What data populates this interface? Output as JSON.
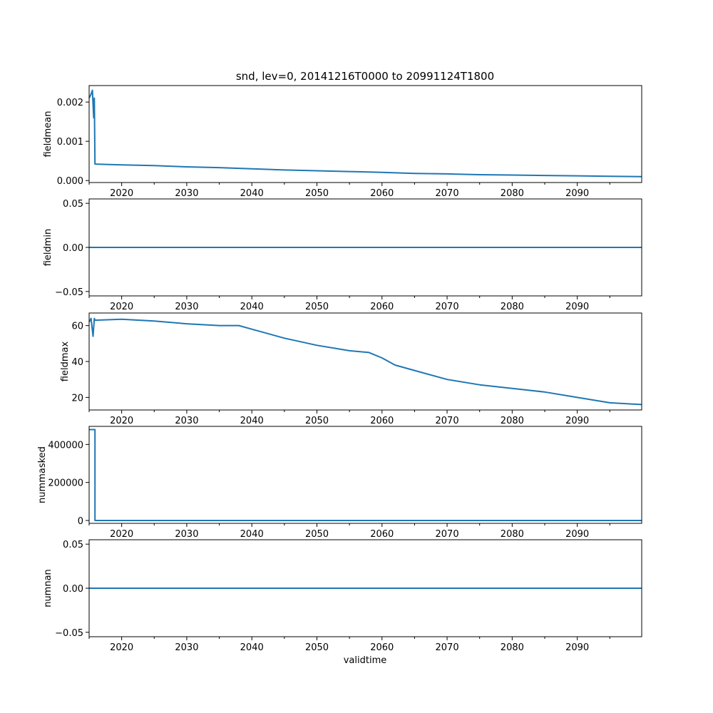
{
  "chart_data": {
    "type": "line",
    "title": "snd, lev=0, 20141216T0000 to 20991124T1800",
    "xlabel": "validtime",
    "xlim": [
      2015.0,
      2099.9
    ],
    "x_ticks": [
      "2020",
      "2030",
      "2040",
      "2050",
      "2060",
      "2070",
      "2080",
      "2090"
    ],
    "line_color": "#1f77b4",
    "grid": false,
    "panels": [
      {
        "ylabel": "fieldmean",
        "ylim": [
          -5e-05,
          0.00242
        ],
        "y_ticks": [
          "0.000",
          "0.001",
          "0.002"
        ],
        "series": [
          {
            "x": [
              2015.0,
              2015.3,
              2015.5,
              2015.7,
              2015.8,
              2015.9,
              2020,
              2025,
              2030,
              2035,
              2040,
              2045,
              2050,
              2055,
              2060,
              2065,
              2070,
              2075,
              2080,
              2085,
              2090,
              2095,
              2099.9
            ],
            "y": [
              0.0021,
              0.0022,
              0.0023,
              0.0016,
              0.0021,
              0.00042,
              0.0004,
              0.00038,
              0.00035,
              0.00033,
              0.0003,
              0.00027,
              0.00025,
              0.00023,
              0.00021,
              0.00018,
              0.00017,
              0.00015,
              0.00014,
              0.00013,
              0.00012,
              0.00011,
              0.0001
            ]
          }
        ]
      },
      {
        "ylabel": "fieldmin",
        "ylim": [
          -0.055,
          0.055
        ],
        "y_ticks": [
          "−0.05",
          "0.00",
          "0.05"
        ],
        "series": [
          {
            "x": [
              2015.0,
              2099.9
            ],
            "y": [
              0,
              0
            ]
          }
        ]
      },
      {
        "ylabel": "fieldmax",
        "ylim": [
          13,
          67
        ],
        "y_ticks": [
          "20",
          "40",
          "60"
        ],
        "series": [
          {
            "x": [
              2015.0,
              2015.3,
              2015.6,
              2015.8,
              2015.9,
              2020,
              2025,
              2030,
              2035,
              2038,
              2040,
              2045,
              2050,
              2055,
              2058,
              2060,
              2062,
              2065,
              2070,
              2075,
              2080,
              2085,
              2090,
              2095,
              2099.9
            ],
            "y": [
              62,
              64,
              54,
              64,
              63,
              63.5,
              62.5,
              61,
              60,
              60,
              58,
              53,
              49,
              46,
              45,
              42,
              38,
              35,
              30,
              27,
              25,
              23,
              20,
              17,
              16
            ]
          }
        ]
      },
      {
        "ylabel": "nummasked",
        "ylim": [
          -15000,
          495000
        ],
        "y_ticks": [
          "0",
          "200000",
          "400000"
        ],
        "series": [
          {
            "x": [
              2015.0,
              2015.9,
              2015.9,
              2099.9
            ],
            "y": [
              478000,
              478000,
              0,
              0
            ]
          }
        ]
      },
      {
        "ylabel": "numnan",
        "ylim": [
          -0.055,
          0.055
        ],
        "y_ticks": [
          "−0.05",
          "0.00",
          "0.05"
        ],
        "series": [
          {
            "x": [
              2015.0,
              2099.9
            ],
            "y": [
              0,
              0
            ]
          }
        ]
      }
    ]
  }
}
